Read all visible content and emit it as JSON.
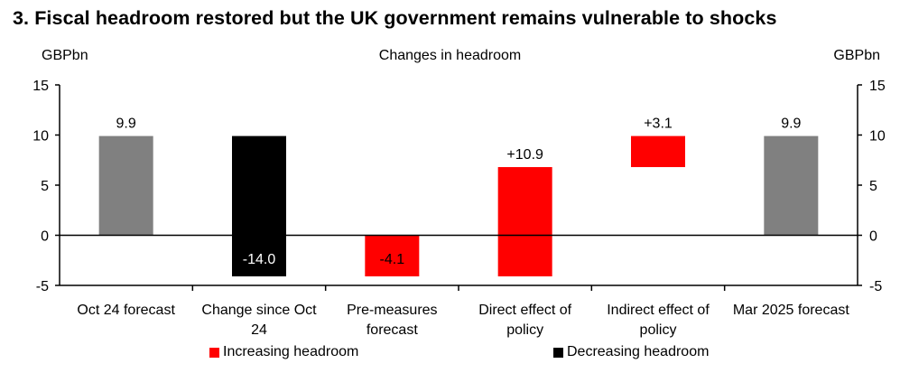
{
  "title": "3.  Fiscal headroom restored but the UK government remains vulnerable to shocks",
  "unit_left": "GBPbn",
  "unit_right": "GBPbn",
  "colors": {
    "total": "#808080",
    "increase": "#ff0000",
    "decrease": "#000000"
  },
  "legend": [
    {
      "label": "Increasing headroom",
      "color": "#ff0000"
    },
    {
      "label": "Decreasing headroom",
      "color": "#000000"
    }
  ],
  "chart_data": {
    "type": "bar",
    "subtype": "waterfall",
    "title": "Changes in headroom",
    "ylabel": "GBPbn",
    "ylim": [
      -5,
      15
    ],
    "yticks": [
      -5,
      0,
      5,
      10,
      15
    ],
    "categories": [
      "Oct 24 forecast",
      "Change since Oct 24",
      "Pre-measures forecast",
      "Direct effect of policy",
      "Indirect effect of policy",
      "Mar 2025 forecast"
    ],
    "bars": [
      {
        "category": "Oct 24 forecast",
        "kind": "total",
        "start": 0,
        "end": 9.9,
        "label": "9.9"
      },
      {
        "category": "Change since Oct 24",
        "kind": "decrease",
        "start": 9.9,
        "end": -4.1,
        "label": "-14.0"
      },
      {
        "category": "Pre-measures forecast",
        "kind": "increase",
        "start": 0,
        "end": -4.1,
        "label": "-4.1"
      },
      {
        "category": "Direct effect of policy",
        "kind": "increase",
        "start": -4.1,
        "end": 6.8,
        "label": "+10.9"
      },
      {
        "category": "Indirect effect of policy",
        "kind": "increase",
        "start": 6.8,
        "end": 9.9,
        "label": "+3.1"
      },
      {
        "category": "Mar 2025 forecast",
        "kind": "total",
        "start": 0,
        "end": 9.9,
        "label": "9.9"
      }
    ],
    "legend_position": "bottom",
    "grid": false
  }
}
